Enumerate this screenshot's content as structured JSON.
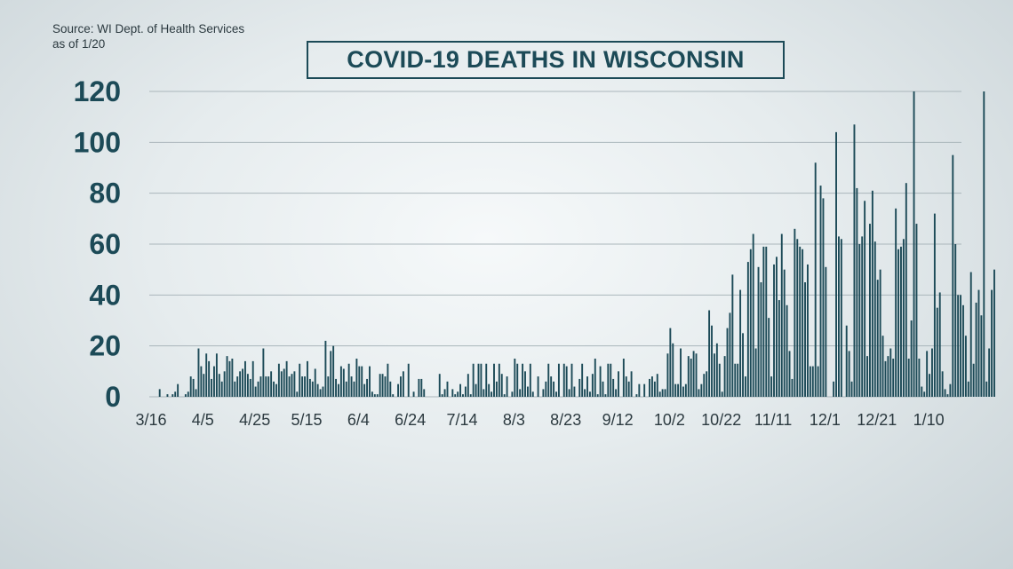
{
  "source": {
    "line1": "Source: WI Dept. of Health Services",
    "line2": "as of 1/20"
  },
  "colors": {
    "bar": "#1c4a57",
    "grid": "#aab6bb",
    "text": "#1c4a57"
  },
  "chart_data": {
    "type": "bar",
    "title": "COVID-19 DEATHS IN WISCONSIN",
    "xlabel": "",
    "ylabel": "",
    "ylim": [
      0,
      120
    ],
    "yticks": [
      0,
      20,
      40,
      60,
      80,
      100,
      120
    ],
    "grid": true,
    "x_tick_labels": [
      {
        "label": "3/16",
        "day": 0
      },
      {
        "label": "4/5",
        "day": 20
      },
      {
        "label": "4/25",
        "day": 40
      },
      {
        "label": "5/15",
        "day": 60
      },
      {
        "label": "6/4",
        "day": 80
      },
      {
        "label": "6/24",
        "day": 100
      },
      {
        "label": "7/14",
        "day": 120
      },
      {
        "label": "8/3",
        "day": 140
      },
      {
        "label": "8/23",
        "day": 160
      },
      {
        "label": "9/12",
        "day": 180
      },
      {
        "label": "10/2",
        "day": 200
      },
      {
        "label": "10/22",
        "day": 220
      },
      {
        "label": "11/11",
        "day": 240
      },
      {
        "label": "12/1",
        "day": 260
      },
      {
        "label": "12/21",
        "day": 280
      },
      {
        "label": "1/10",
        "day": 300
      }
    ],
    "series": [
      {
        "values": [
          0,
          0,
          0,
          3,
          0,
          0,
          1,
          0,
          1,
          2,
          5,
          0,
          0,
          1,
          2,
          8,
          7,
          3,
          19,
          12,
          9,
          17,
          14,
          7,
          12,
          17,
          9,
          6,
          10,
          16,
          14,
          15,
          6,
          8,
          10,
          11,
          14,
          9,
          7,
          14,
          4,
          6,
          8,
          19,
          8,
          8,
          10,
          6,
          5,
          13,
          10,
          11,
          14,
          8,
          9,
          10,
          2,
          13,
          8,
          8,
          14,
          7,
          6,
          11,
          5,
          3,
          4,
          22,
          8,
          18,
          20,
          7,
          5,
          12,
          11,
          6,
          13,
          8,
          6,
          15,
          12,
          12,
          5,
          7,
          12,
          2,
          1,
          1,
          9,
          9,
          8,
          13,
          6,
          1,
          0,
          5,
          8,
          10,
          0,
          13,
          0,
          2,
          0,
          7,
          7,
          3,
          0,
          0,
          0,
          0,
          0,
          9,
          1,
          3,
          6,
          0,
          3,
          1,
          2,
          5,
          1,
          4,
          9,
          1,
          13,
          5,
          13,
          13,
          3,
          13,
          5,
          2,
          13,
          6,
          13,
          9,
          1,
          8,
          0,
          2,
          15,
          13,
          3,
          13,
          10,
          4,
          13,
          2,
          0,
          8,
          0,
          3,
          6,
          13,
          8,
          6,
          2,
          13,
          0,
          13,
          12,
          3,
          13,
          4,
          0,
          7,
          13,
          3,
          8,
          2,
          9,
          15,
          1,
          12,
          6,
          1,
          13,
          13,
          7,
          3,
          10,
          0,
          15,
          8,
          6,
          10,
          0,
          1,
          5,
          0,
          5,
          0,
          7,
          8,
          6,
          9,
          2,
          3,
          3,
          17,
          27,
          21,
          5,
          5,
          19,
          4,
          5,
          16,
          15,
          18,
          17,
          3,
          5,
          9,
          10,
          34,
          28,
          17,
          21,
          13,
          2,
          16,
          27,
          33,
          48,
          13,
          13,
          42,
          25,
          8,
          53,
          58,
          64,
          19,
          51,
          45,
          59,
          59,
          31,
          8,
          52,
          55,
          38,
          64,
          50,
          36,
          18,
          7,
          66,
          62,
          59,
          58,
          45,
          52,
          12,
          12,
          92,
          12,
          83,
          78,
          51,
          0,
          0,
          6,
          104,
          63,
          62,
          0,
          28,
          18,
          6,
          107,
          82,
          60,
          63,
          77,
          16,
          68,
          81,
          61,
          46,
          50,
          24,
          14,
          16,
          19,
          15,
          74,
          58,
          59,
          62,
          84,
          15,
          30,
          120,
          68,
          15,
          4,
          2,
          18,
          9,
          19,
          72,
          35,
          41,
          10,
          3,
          1,
          5,
          95,
          60,
          40,
          40,
          36,
          24,
          6,
          49,
          13,
          37,
          42,
          32,
          120,
          6,
          19,
          42,
          50
        ]
      }
    ]
  }
}
